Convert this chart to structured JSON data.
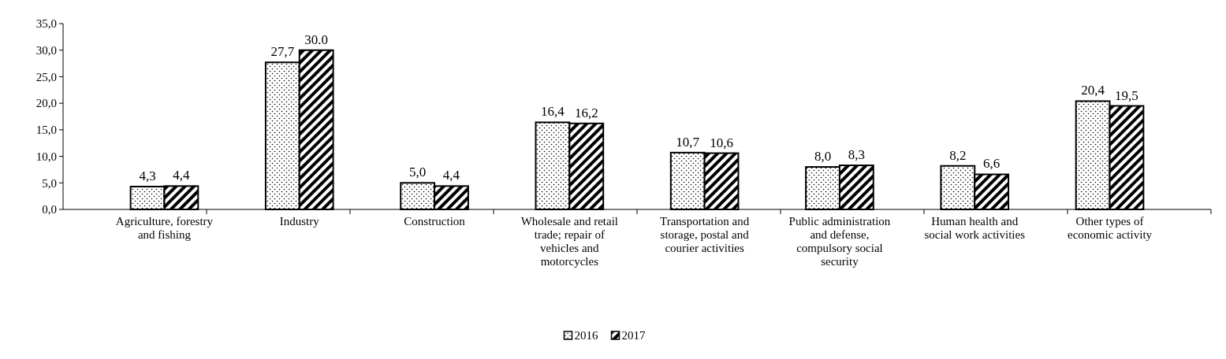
{
  "chart_data": {
    "type": "bar",
    "categories": [
      "Agriculture, forestry and fishing",
      "Industry",
      "Construction",
      "Wholesale and retail trade; repair of vehicles and motorcycles",
      "Transportation and storage, postal and courier activities",
      "Public administration and defense, compulsory social security",
      "Human health and social work activities",
      "Other types of economic activity"
    ],
    "series": [
      {
        "name": "2016",
        "color": "#000000",
        "values": [
          4.3,
          27.7,
          5.0,
          16.4,
          10.7,
          8.0,
          8.2,
          20.4
        ],
        "value_labels": [
          "4,3",
          "27,7",
          "5,0",
          "16,4",
          "10,7",
          "8,0",
          "8,2",
          "20,4"
        ]
      },
      {
        "name": "2017",
        "color": "#000000",
        "values": [
          4.4,
          30.0,
          4.4,
          16.2,
          10.6,
          8.3,
          6.6,
          19.5
        ],
        "value_labels": [
          "4,4",
          "30.0",
          "4,4",
          "16,2",
          "10,6",
          "8,3",
          "6,6",
          "19,5"
        ]
      }
    ],
    "ylim": [
      0,
      35
    ],
    "yticks": [
      {
        "value": 0,
        "label": "0,0"
      },
      {
        "value": 5,
        "label": "5,0"
      },
      {
        "value": 10,
        "label": "10,0"
      },
      {
        "value": 15,
        "label": "15,0"
      },
      {
        "value": 20,
        "label": "20,0"
      },
      {
        "value": 25,
        "label": "25,0"
      },
      {
        "value": 30,
        "label": "30,0"
      },
      {
        "value": 35,
        "label": "35,0"
      }
    ],
    "legend": "bottom"
  }
}
